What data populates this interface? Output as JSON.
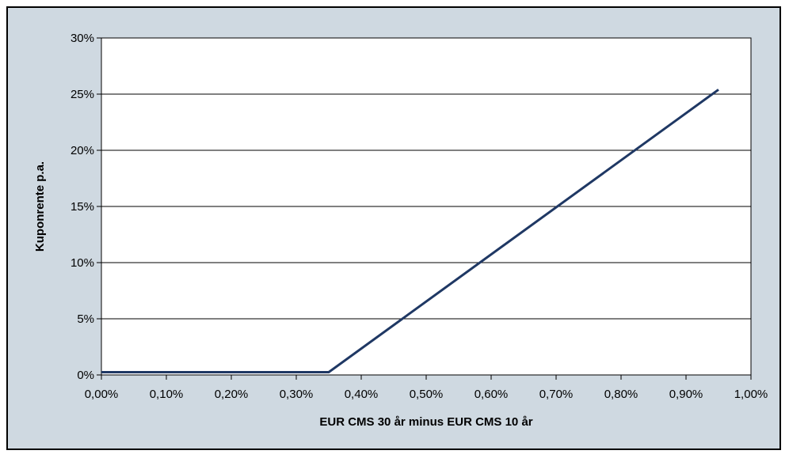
{
  "chart_data": {
    "type": "line",
    "title": "",
    "xlabel": "EUR CMS 30 år minus EUR CMS 10 år",
    "ylabel": "Kuponrente p.a.",
    "xlim": [
      0,
      1.0
    ],
    "ylim": [
      0,
      30
    ],
    "x_tick_values": [
      0,
      0.1,
      0.2,
      0.3,
      0.4,
      0.5,
      0.6,
      0.7,
      0.8,
      0.9,
      1.0
    ],
    "x_tick_labels": [
      "0,00%",
      "0,10%",
      "0,20%",
      "0,30%",
      "0,40%",
      "0,50%",
      "0,60%",
      "0,70%",
      "0,80%",
      "0,90%",
      "1,00%"
    ],
    "y_tick_values": [
      0,
      5,
      10,
      15,
      20,
      25,
      30
    ],
    "y_tick_labels": [
      "0%",
      "5%",
      "10%",
      "15%",
      "20%",
      "25%",
      "30%"
    ],
    "grid": "horizontal",
    "legend": "none",
    "series": [
      {
        "color": "#1f3864",
        "x": [
          0.0,
          0.35,
          0.95
        ],
        "y": [
          0.25,
          0.25,
          25.4
        ]
      }
    ],
    "colors": {
      "background": "#cfd9e1",
      "plot_area": "#ffffff",
      "line": "#1f3864"
    }
  }
}
